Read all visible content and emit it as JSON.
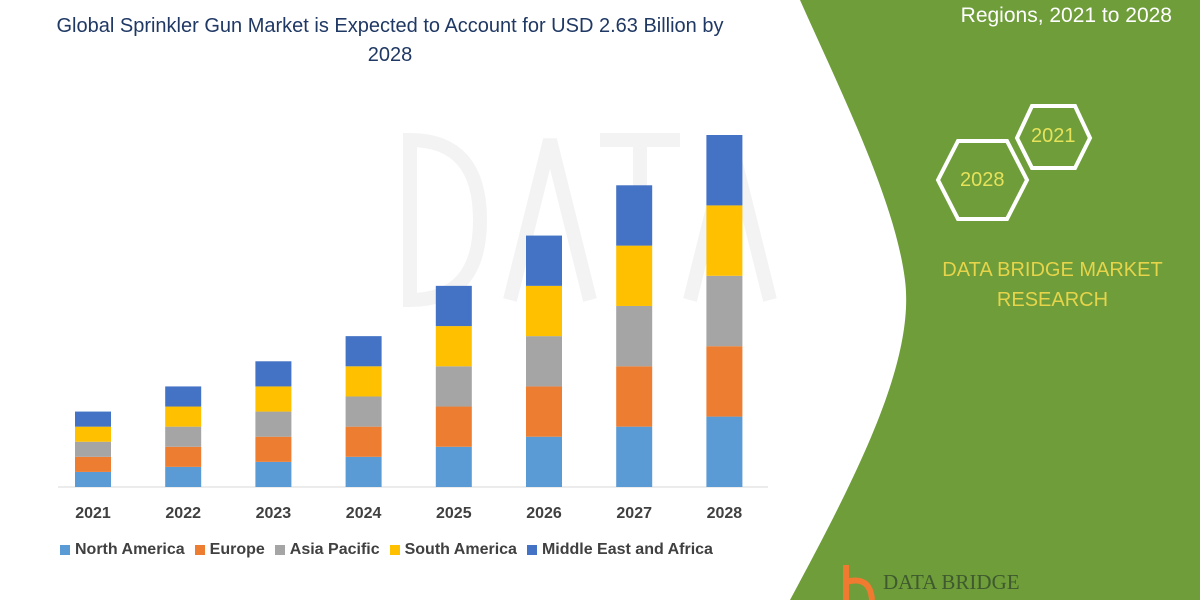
{
  "header": {
    "title": "Global Sprinkler Gun Market is Expected to Account for USD 2.63 Billion by 2028",
    "right_title": "Regions, 2021 to 2028"
  },
  "panel": {
    "hex_years": [
      "2021",
      "2028"
    ],
    "brand": "DATA BRIDGE MARKET RESEARCH",
    "logo_text": "DATA BRIDGE",
    "green": "#6e9d3a"
  },
  "chart_data": {
    "type": "bar",
    "stacked": true,
    "categories": [
      "2021",
      "2022",
      "2023",
      "2024",
      "2025",
      "2026",
      "2027",
      "2028"
    ],
    "series": [
      {
        "name": "North America",
        "color": "#5b9bd5",
        "values": [
          15,
          20,
          25,
          30,
          40,
          50,
          60,
          70
        ]
      },
      {
        "name": "Europe",
        "color": "#ed7d31",
        "values": [
          15,
          20,
          25,
          30,
          40,
          50,
          60,
          70
        ]
      },
      {
        "name": "Asia Pacific",
        "color": "#a5a5a5",
        "values": [
          15,
          20,
          25,
          30,
          40,
          50,
          60,
          70
        ]
      },
      {
        "name": "South America",
        "color": "#ffc000",
        "values": [
          15,
          20,
          25,
          30,
          40,
          50,
          60,
          70
        ]
      },
      {
        "name": "Middle East and Africa",
        "color": "#4472c4",
        "values": [
          15,
          20,
          25,
          30,
          40,
          50,
          60,
          70
        ]
      }
    ],
    "title": "Global Sprinkler Gun Market is Expected to Account for USD 2.63 Billion by 2028",
    "xlabel": "",
    "ylabel": "",
    "ylim": [
      0,
      350
    ],
    "grid": false,
    "legend": "bottom"
  }
}
